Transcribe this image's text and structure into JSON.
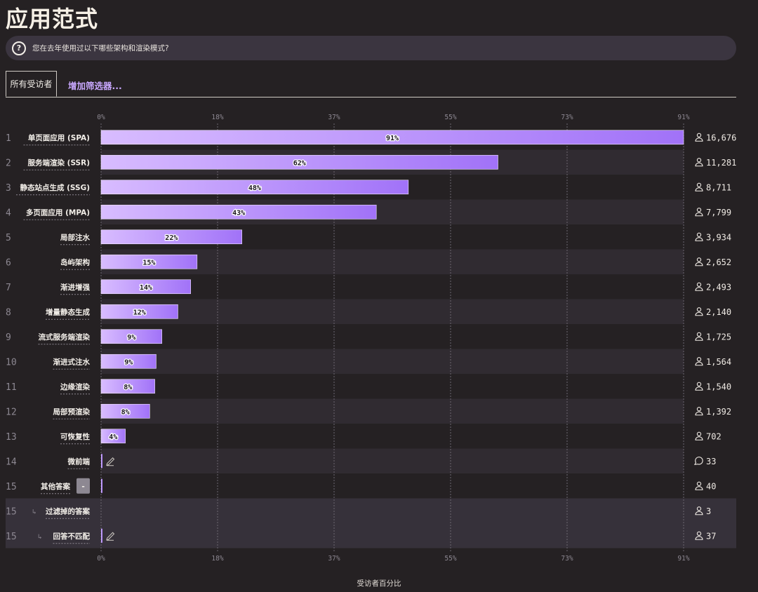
{
  "page": {
    "title": "应用范式",
    "question": "您在去年使用过以下哪些架构和渲染模式?",
    "question_icon": "question-circle-icon",
    "tabs": {
      "active": "所有受访者",
      "add_filter": "增加筛选器..."
    },
    "x_axis_label": "受访者百分比"
  },
  "colors": {
    "background": "#252123",
    "row_stripe": "#302b31",
    "bar_start": "#d8bcff",
    "bar_end": "#a172f8",
    "bar_border": "#f2e6ff",
    "accent_text": "#c9a8ff"
  },
  "chart_data": {
    "type": "bar",
    "orientation": "horizontal",
    "title": "应用范式",
    "xlabel": "受访者百分比",
    "xlim": [
      0,
      91
    ],
    "ticks": [
      "0%",
      "18%",
      "37%",
      "55%",
      "73%",
      "91%"
    ],
    "rows": [
      {
        "rank": "1",
        "label": "单页面应用 (SPA)",
        "value": 91,
        "pct_label": "91%",
        "count": "16,676",
        "icon": "user-icon"
      },
      {
        "rank": "2",
        "label": "服务端渲染 (SSR)",
        "value": 62,
        "pct_label": "62%",
        "count": "11,281",
        "icon": "user-icon"
      },
      {
        "rank": "3",
        "label": "静态站点生成 (SSG)",
        "value": 48,
        "pct_label": "48%",
        "count": "8,711",
        "icon": "user-icon"
      },
      {
        "rank": "4",
        "label": "多页面应用 (MPA)",
        "value": 43,
        "pct_label": "43%",
        "count": "7,799",
        "icon": "user-icon"
      },
      {
        "rank": "5",
        "label": "局部注水",
        "value": 22,
        "pct_label": "22%",
        "count": "3,934",
        "icon": "user-icon"
      },
      {
        "rank": "6",
        "label": "岛屿架构",
        "value": 15,
        "pct_label": "15%",
        "count": "2,652",
        "icon": "user-icon"
      },
      {
        "rank": "7",
        "label": "渐进增强",
        "value": 14,
        "pct_label": "14%",
        "count": "2,493",
        "icon": "user-icon"
      },
      {
        "rank": "8",
        "label": "增量静态生成",
        "value": 12,
        "pct_label": "12%",
        "count": "2,140",
        "icon": "user-icon"
      },
      {
        "rank": "9",
        "label": "流式服务端渲染",
        "value": 9.5,
        "pct_label": "9%",
        "count": "1,725",
        "icon": "user-icon"
      },
      {
        "rank": "10",
        "label": "渐进式注水",
        "value": 8.6,
        "pct_label": "9%",
        "count": "1,564",
        "icon": "user-icon"
      },
      {
        "rank": "11",
        "label": "边缘渲染",
        "value": 8.4,
        "pct_label": "8%",
        "count": "1,540",
        "icon": "user-icon"
      },
      {
        "rank": "12",
        "label": "局部预渲染",
        "value": 7.6,
        "pct_label": "8%",
        "count": "1,392",
        "icon": "user-icon"
      },
      {
        "rank": "13",
        "label": "可恢复性",
        "value": 3.8,
        "pct_label": "4%",
        "count": "702",
        "icon": "user-icon"
      },
      {
        "rank": "14",
        "label": "微前端",
        "value": 0.2,
        "pct_label": "",
        "count": "33",
        "icon": "comment-icon",
        "edit": true
      },
      {
        "rank": "15",
        "label": "其他答案",
        "value": 0.2,
        "pct_label": "",
        "count": "40",
        "icon": "user-icon",
        "toggle": "-"
      },
      {
        "rank": "15",
        "label": "过滤掉的答案",
        "value": 0,
        "pct_label": "",
        "count": "3",
        "icon": "user-icon",
        "sub": true
      },
      {
        "rank": "15",
        "label": "回答不匹配",
        "value": 0.2,
        "pct_label": "",
        "count": "37",
        "icon": "user-icon",
        "sub": true,
        "edit": true
      }
    ]
  }
}
